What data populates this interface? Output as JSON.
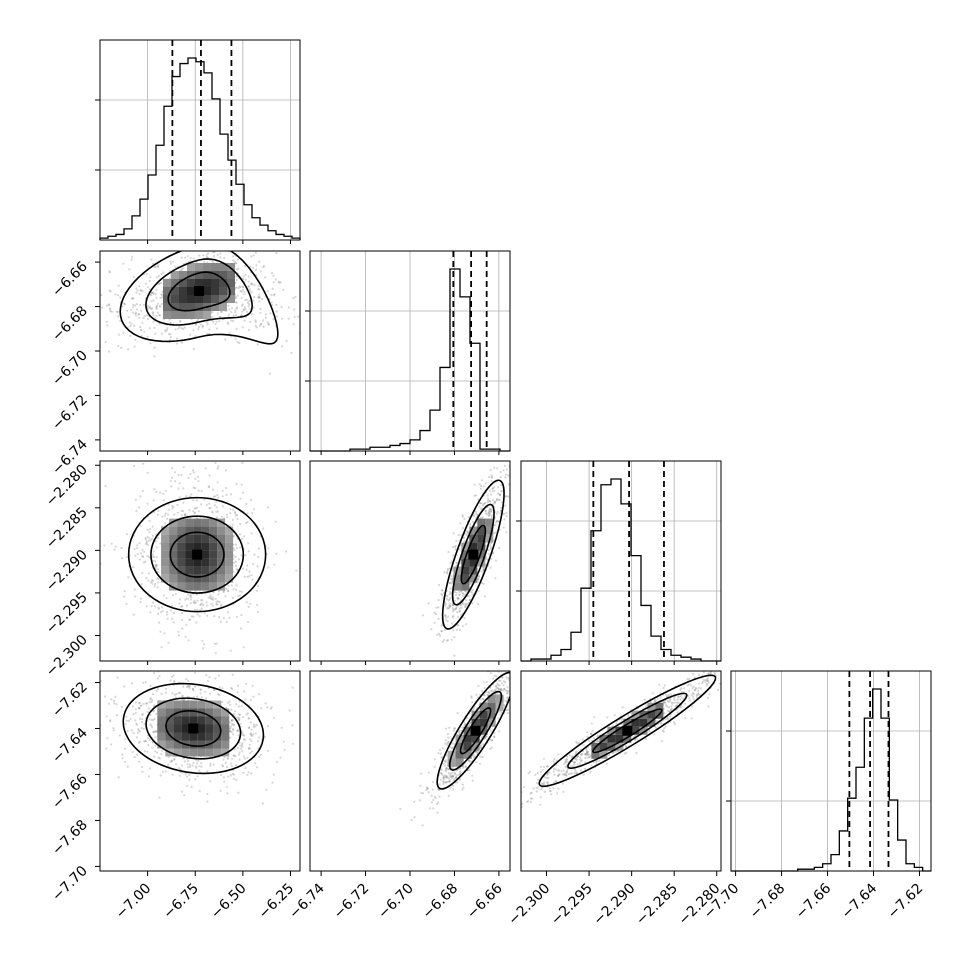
{
  "chart_data": {
    "type": "corner",
    "grid": true,
    "parameters": [
      {
        "range": [
          -7.25,
          -6.2
        ],
        "ticks": [
          -7.0,
          -6.75,
          -6.5,
          -6.25
        ],
        "tick_labels": [
          "−7.00",
          "−6.75",
          "−6.50",
          "−6.25"
        ],
        "quantiles": [
          -6.87,
          -6.72,
          -6.56
        ],
        "hist": [
          1,
          2,
          3,
          6,
          13,
          22,
          35,
          51,
          72,
          88,
          95,
          98,
          96,
          90,
          76,
          57,
          43,
          30,
          19,
          12,
          8,
          5,
          3,
          2,
          1
        ]
      },
      {
        "range": [
          -6.745,
          -6.655
        ],
        "ticks": [
          -6.74,
          -6.72,
          -6.7,
          -6.68,
          -6.66
        ],
        "tick_labels": [
          "−6.74",
          "−6.72",
          "−6.70",
          "−6.68",
          "−6.66"
        ],
        "quantiles": [
          -6.6805,
          -6.6725,
          -6.6655
        ],
        "hist": [
          0,
          0,
          0,
          0,
          1,
          1,
          2,
          2,
          3,
          4,
          6,
          11,
          22,
          45,
          98,
          83,
          58,
          1,
          1,
          0
        ]
      },
      {
        "range": [
          -2.303,
          -2.2795
        ],
        "ticks": [
          -2.3,
          -2.295,
          -2.29,
          -2.285,
          -2.28
        ],
        "tick_labels": [
          "−2.300",
          "−2.295",
          "−2.290",
          "−2.285",
          "−2.280"
        ],
        "quantiles": [
          -2.2945,
          -2.2903,
          -2.2862
        ],
        "hist": [
          0,
          1,
          1,
          3,
          6,
          15,
          38,
          68,
          92,
          95,
          82,
          55,
          29,
          13,
          6,
          3,
          2,
          1,
          0,
          0
        ]
      },
      {
        "range": [
          -7.702,
          -7.615
        ],
        "ticks": [
          -7.7,
          -7.68,
          -7.66,
          -7.64,
          -7.62
        ],
        "tick_labels": [
          "−7.70",
          "−7.68",
          "−7.66",
          "−7.64",
          "−7.62"
        ],
        "quantiles": [
          -7.6505,
          -7.6415,
          -7.6335
        ],
        "hist": [
          0,
          0,
          0,
          0,
          0,
          0,
          0,
          0,
          1,
          1,
          2,
          4,
          9,
          22,
          40,
          57,
          84,
          100,
          84,
          39,
          17,
          4,
          2,
          0
        ]
      }
    ],
    "pairs": [
      {
        "x": 0,
        "y": 1,
        "center": [
          -6.73,
          -6.673
        ],
        "sd": [
          0.18,
          0.009
        ],
        "rho": 0.45,
        "skew": "curve"
      },
      {
        "x": 0,
        "y": 2,
        "center": [
          -6.74,
          -2.2905
        ],
        "sd": [
          0.13,
          0.0035
        ],
        "rho": 0.0
      },
      {
        "x": 1,
        "y": 2,
        "center": [
          -6.6715,
          -2.2905
        ],
        "sd": [
          0.006,
          0.0038
        ],
        "rho": 0.82
      },
      {
        "x": 0,
        "y": 3,
        "center": [
          -6.76,
          -7.64
        ],
        "sd": [
          0.16,
          0.0085
        ],
        "rho": -0.15
      },
      {
        "x": 1,
        "y": 3,
        "center": [
          -6.6705,
          -7.641
        ],
        "sd": [
          0.0075,
          0.011
        ],
        "rho": 0.88
      },
      {
        "x": 2,
        "y": 3,
        "center": [
          -2.2905,
          -7.641
        ],
        "sd": [
          0.0045,
          0.0105
        ],
        "rho": 0.95
      }
    ]
  }
}
